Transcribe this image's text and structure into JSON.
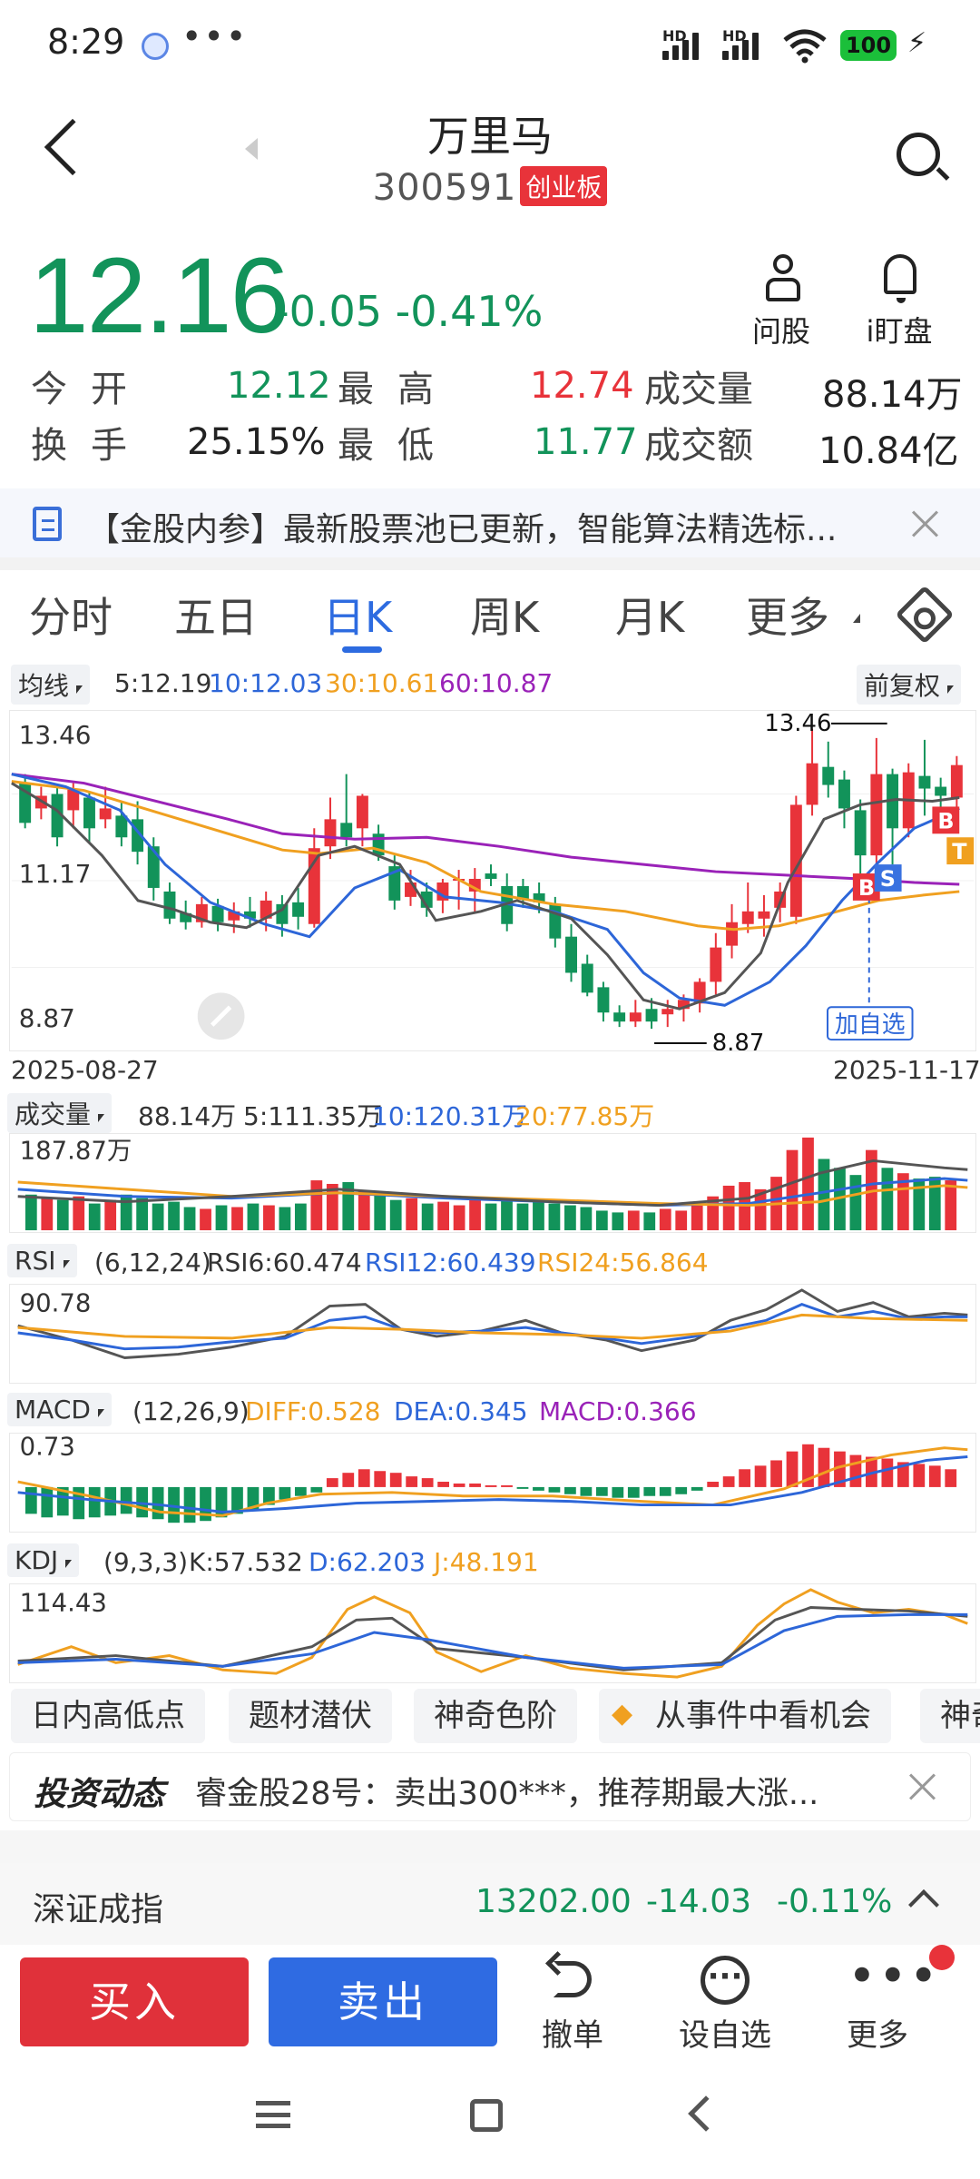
{
  "status_bar": {
    "time": "8:29",
    "more_glyph": "•••",
    "battery": "100",
    "signal_labels": [
      "HD",
      "HD"
    ]
  },
  "header": {
    "name": "万里马",
    "code": "300591",
    "board_badge": "创业板"
  },
  "quote": {
    "price": "12.16",
    "change": "-0.05",
    "change_pct": "-0.41%",
    "color_down": "#12935a",
    "color_up": "#e8333a"
  },
  "top_actions": [
    {
      "label": "问股",
      "icon": "person-icon"
    },
    {
      "label": "i盯盘",
      "icon": "bell-icon"
    }
  ],
  "stats": {
    "open_label": "今开",
    "open_value": "12.12",
    "high_label": "最高",
    "high_value": "12.74",
    "volume_label": "成交量",
    "volume_value": "88.14万",
    "turnover_label": "换手",
    "turnover_value": "25.15%",
    "low_label": "最低",
    "low_value": "11.77",
    "amount_label": "成交额",
    "amount_value": "10.84亿"
  },
  "notice": {
    "text": "【金股内参】最新股票池已更新，智能算法精选标..."
  },
  "tabs": [
    "分时",
    "五日",
    "日K",
    "周K",
    "月K",
    "更多"
  ],
  "active_tab": "日K",
  "ma_bar": {
    "selector": "均线",
    "ma5": "5:12.19",
    "ma10": "10:12.03",
    "ma30": "30:10.61",
    "ma60": "60:10.87",
    "adjust": "前复权"
  },
  "kline": {
    "y_top": "13.46",
    "y_mid": "11.17",
    "y_bottom": "8.87",
    "high_marker": "13.46",
    "low_marker": "8.87",
    "date_start": "2025-08-27",
    "date_end": "2025-11-17",
    "add_watch": "加自选",
    "marks": [
      "B",
      "S",
      "B",
      "T"
    ]
  },
  "volume_bar": {
    "selector": "成交量",
    "vol": "88.14万",
    "m5": "5:111.35万",
    "m10": "10:120.31万",
    "m20": "20:77.85万",
    "y_top": "187.87万"
  },
  "rsi_bar": {
    "selector": "RSI",
    "params": "(6,12,24)",
    "rsi6": "RSI6:60.474",
    "rsi12": "RSI12:60.439",
    "rsi24": "RSI24:56.864",
    "y_top": "90.78"
  },
  "macd_bar": {
    "selector": "MACD",
    "params": "(12,26,9)",
    "diff": "DIFF:0.528",
    "dea": "DEA:0.345",
    "macd": "MACD:0.366",
    "y_top": "0.73"
  },
  "kdj_bar": {
    "selector": "KDJ",
    "params": "(9,3,3)",
    "k": "K:57.532",
    "d": "D:62.203",
    "j": "J:48.191",
    "y_top": "114.43"
  },
  "chips": [
    "日内高低点",
    "题材潜伏",
    "神奇色阶",
    "从事件中看机会",
    "神奇"
  ],
  "news": {
    "brand": "投资动态",
    "text": "睿金股28号：卖出300***，推荐期最大涨..."
  },
  "index": {
    "name": "深证成指",
    "value": "13202.00",
    "change": "-14.03",
    "pct": "-0.11%"
  },
  "bottom": {
    "buy": "买入",
    "sell": "卖出",
    "cancel": "撤单",
    "watch": "设自选",
    "more": "更多"
  }
}
